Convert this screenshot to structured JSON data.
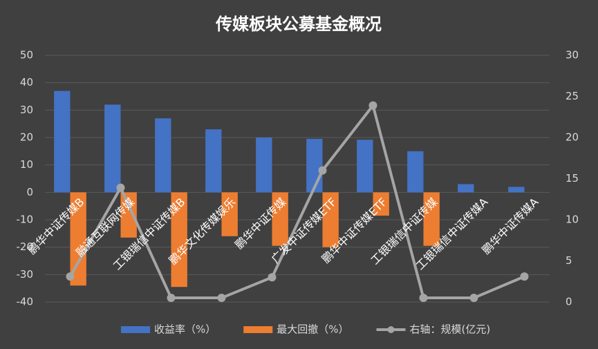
{
  "chart_data": {
    "type": "bar-line",
    "title": "传媒板块公募基金概况",
    "categories": [
      "鹏华中证传媒B",
      "融通互联网传媒",
      "工银瑞信中证传媒B",
      "鹏华文化传媒娱乐",
      "鹏华中证传媒",
      "广发中证传媒ETF",
      "鹏华中证传媒ETF",
      "工银瑞信中证传媒",
      "工银瑞信中证传媒A",
      "鹏华中证传媒A"
    ],
    "series": [
      {
        "name": "收益率（%）",
        "color": "#4472c4",
        "type": "bar",
        "values": [
          37,
          32,
          27,
          23,
          20,
          19.5,
          19.2,
          15,
          3,
          2
        ]
      },
      {
        "name": "最大回撤（%）",
        "color": "#ed7d31",
        "type": "bar",
        "values": [
          -34,
          -16.5,
          -34.5,
          -16,
          -19.5,
          -20,
          -8.5,
          -19.5,
          0,
          0
        ]
      },
      {
        "name": "右轴：规模(亿元)",
        "color": "#a5a5a5",
        "type": "line",
        "axis": "y2",
        "values": [
          3.1,
          13.9,
          0.5,
          0.5,
          3,
          16,
          23.9,
          0.5,
          0.5,
          3.1
        ]
      }
    ],
    "ylim": [
      -40,
      50
    ],
    "yticks": [
      -40,
      -30,
      -20,
      -10,
      0,
      10,
      20,
      30,
      40,
      50
    ],
    "y2lim": [
      0,
      30
    ],
    "y2ticks": [
      0,
      5,
      10,
      15,
      20,
      25,
      30
    ],
    "grid": true,
    "legend": "bottom"
  }
}
